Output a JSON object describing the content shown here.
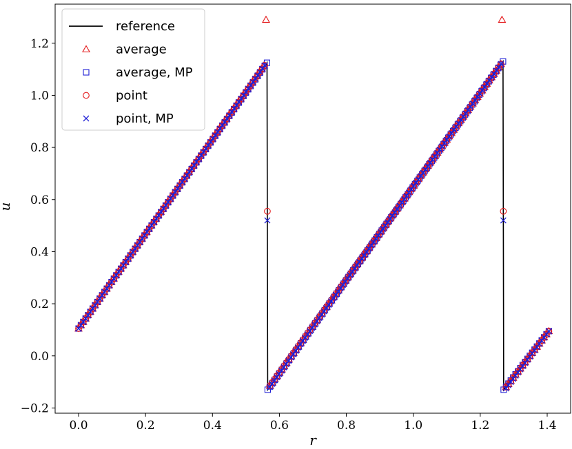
{
  "chart_data": {
    "type": "line",
    "title": "",
    "xlabel": "r",
    "ylabel": "u",
    "xlim": [
      -0.07,
      1.47
    ],
    "ylim": [
      -0.22,
      1.35
    ],
    "xticks": [
      0.0,
      0.2,
      0.4,
      0.6,
      0.8,
      1.0,
      1.2,
      1.4
    ],
    "xtick_labels": [
      "0.0",
      "0.2",
      "0.4",
      "0.6",
      "0.8",
      "1.0",
      "1.2",
      "1.4"
    ],
    "yticks": [
      -0.2,
      0.0,
      0.2,
      0.4,
      0.6,
      0.8,
      1.0,
      1.2
    ],
    "ytick_labels": [
      "−0.2",
      "0.0",
      "0.2",
      "0.4",
      "0.6",
      "0.8",
      "1.0",
      "1.2"
    ],
    "grid": false,
    "legend_position": "top-left",
    "colors": {
      "reference": "#000000",
      "red": "#e41a1c",
      "blue": "#1f1fd6"
    },
    "series": [
      {
        "name": "reference",
        "marker": "line",
        "color": "#000000",
        "x": [
          0.0,
          0.563,
          0.563,
          0.565,
          1.268,
          1.268,
          1.27,
          1.405
        ],
        "y": [
          0.105,
          1.125,
          1.125,
          -0.13,
          1.13,
          1.13,
          -0.13,
          0.095
        ]
      },
      {
        "name": "average",
        "marker": "triangle",
        "color": "#e41a1c",
        "segments": [
          {
            "x_start": 0.0,
            "x_end": 0.554,
            "y_start": 0.105,
            "y_end": 1.115,
            "count": 80
          },
          {
            "x_start": 0.572,
            "x_end": 1.262,
            "y_start": -0.115,
            "y_end": 1.12,
            "count": 99
          },
          {
            "x_start": 1.277,
            "x_end": 1.405,
            "y_start": -0.12,
            "y_end": 0.095,
            "count": 19
          }
        ],
        "extra_points": [
          {
            "x": 0.56,
            "y": 1.29
          },
          {
            "x": 1.265,
            "y": 1.29
          }
        ]
      },
      {
        "name": "average, MP",
        "marker": "square",
        "color": "#1f1fd6",
        "segments": [
          {
            "x_start": 0.0,
            "x_end": 0.563,
            "y_start": 0.105,
            "y_end": 1.125,
            "count": 81
          },
          {
            "x_start": 0.565,
            "x_end": 1.268,
            "y_start": -0.13,
            "y_end": 1.13,
            "count": 100
          },
          {
            "x_start": 1.27,
            "x_end": 1.405,
            "y_start": -0.13,
            "y_end": 0.095,
            "count": 20
          }
        ],
        "extra_points": []
      },
      {
        "name": "point",
        "marker": "circle",
        "color": "#e41a1c",
        "segments": [
          {
            "x_start": 0.0,
            "x_end": 0.556,
            "y_start": 0.105,
            "y_end": 1.115,
            "count": 80
          },
          {
            "x_start": 0.571,
            "x_end": 1.262,
            "y_start": -0.115,
            "y_end": 1.12,
            "count": 99
          },
          {
            "x_start": 1.277,
            "x_end": 1.405,
            "y_start": -0.12,
            "y_end": 0.095,
            "count": 19
          }
        ],
        "extra_points": [
          {
            "x": 0.564,
            "y": 0.555
          },
          {
            "x": 1.269,
            "y": 0.555
          }
        ]
      },
      {
        "name": "point, MP",
        "marker": "x",
        "color": "#1f1fd6",
        "segments": [
          {
            "x_start": 0.0,
            "x_end": 0.556,
            "y_start": 0.105,
            "y_end": 1.115,
            "count": 80
          },
          {
            "x_start": 0.571,
            "x_end": 1.262,
            "y_start": -0.12,
            "y_end": 1.12,
            "count": 99
          },
          {
            "x_start": 1.277,
            "x_end": 1.405,
            "y_start": -0.125,
            "y_end": 0.095,
            "count": 19
          }
        ],
        "extra_points": [
          {
            "x": 0.564,
            "y": 0.52
          },
          {
            "x": 1.269,
            "y": 0.52
          }
        ]
      }
    ]
  }
}
